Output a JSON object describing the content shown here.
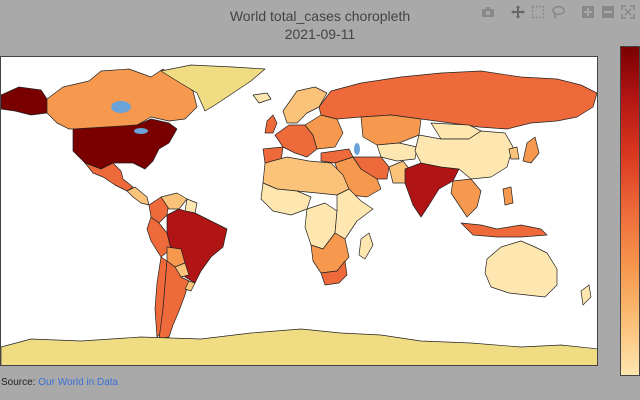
{
  "title": {
    "line1": "World total_cases choropleth",
    "line2": "2021-09-11"
  },
  "source": {
    "prefix": "Source:",
    "link_text": "Our World in Data"
  },
  "modebar": [
    "camera-icon",
    "pan-icon",
    "box-select-icon",
    "lasso-icon",
    "zoom-in-icon",
    "zoom-out-icon",
    "autoscale-icon",
    "reset-axes-icon"
  ],
  "colors": {
    "very_high": "#7a0000",
    "high": "#b11414",
    "mid_high": "#d8361e",
    "mid": "#ee6a3a",
    "mid_low": "#f6994e",
    "low": "#fbc27a",
    "very_low": "#fde6b0",
    "no_data": "#f0dc82",
    "background": "#a9a9a9"
  },
  "regions": [
    {
      "name": "alaska",
      "level": "very_high"
    },
    {
      "name": "canada",
      "level": "mid_low"
    },
    {
      "name": "greenland",
      "level": "no_data"
    },
    {
      "name": "usa",
      "level": "very_high"
    },
    {
      "name": "mexico",
      "level": "mid"
    },
    {
      "name": "central-america",
      "level": "low"
    },
    {
      "name": "colombia",
      "level": "mid"
    },
    {
      "name": "venezuela",
      "level": "low"
    },
    {
      "name": "guianas",
      "level": "very_low"
    },
    {
      "name": "brazil",
      "level": "high"
    },
    {
      "name": "peru",
      "level": "mid"
    },
    {
      "name": "bolivia",
      "level": "mid_low"
    },
    {
      "name": "paraguay",
      "level": "low"
    },
    {
      "name": "argentina",
      "level": "mid"
    },
    {
      "name": "chile",
      "level": "mid"
    },
    {
      "name": "uruguay",
      "level": "low"
    },
    {
      "name": "iceland",
      "level": "very_low"
    },
    {
      "name": "uk",
      "level": "mid"
    },
    {
      "name": "scandinavia",
      "level": "low"
    },
    {
      "name": "western-europe",
      "level": "mid"
    },
    {
      "name": "iberia",
      "level": "mid"
    },
    {
      "name": "eastern-europe",
      "level": "mid_low"
    },
    {
      "name": "russia",
      "level": "mid"
    },
    {
      "name": "turkey",
      "level": "mid"
    },
    {
      "name": "iran",
      "level": "mid"
    },
    {
      "name": "middle-east",
      "level": "mid_low"
    },
    {
      "name": "kazakhstan",
      "level": "mid_low"
    },
    {
      "name": "central-asia",
      "level": "very_low"
    },
    {
      "name": "mongolia",
      "level": "very_low"
    },
    {
      "name": "china",
      "level": "very_low"
    },
    {
      "name": "india",
      "level": "high"
    },
    {
      "name": "pakistan",
      "level": "low"
    },
    {
      "name": "southeast-asia",
      "level": "mid_low"
    },
    {
      "name": "indonesia",
      "level": "mid"
    },
    {
      "name": "philippines",
      "level": "mid_low"
    },
    {
      "name": "japan",
      "level": "mid_low"
    },
    {
      "name": "korea",
      "level": "low"
    },
    {
      "name": "north-africa",
      "level": "low"
    },
    {
      "name": "west-africa",
      "level": "very_low"
    },
    {
      "name": "central-africa",
      "level": "very_low"
    },
    {
      "name": "east-africa",
      "level": "very_low"
    },
    {
      "name": "southern-africa",
      "level": "mid_low"
    },
    {
      "name": "south-africa",
      "level": "mid"
    },
    {
      "name": "madagascar",
      "level": "very_low"
    },
    {
      "name": "australia",
      "level": "very_low"
    },
    {
      "name": "new-zealand",
      "level": "very_low"
    },
    {
      "name": "antarctica",
      "level": "no_data"
    }
  ]
}
